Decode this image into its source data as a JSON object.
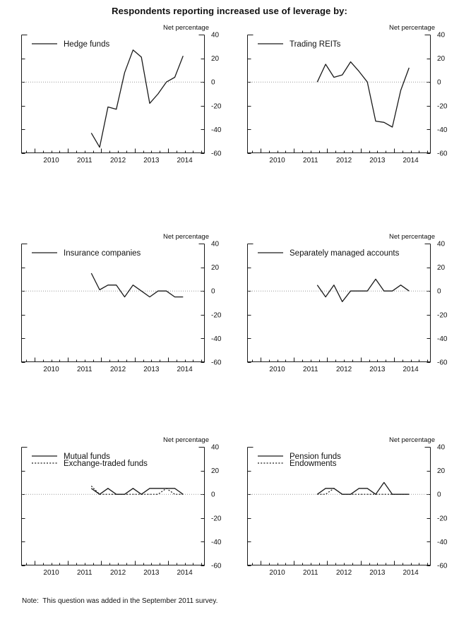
{
  "title": "Respondents reporting increased use of leverage by:",
  "note": "Note:  This question was added in the September 2011 survey.",
  "colors": {
    "line": "#1a1a1a",
    "zero_line": "#979797",
    "text": "#111111"
  },
  "chart_data": {
    "type": "line",
    "unit_label": "Net percentage",
    "ylim": [
      -60,
      40
    ],
    "y_ticks": [
      40,
      20,
      0,
      -20,
      -40,
      -60
    ],
    "xlim": [
      2009.6,
      2015.1
    ],
    "x_year_labels": [
      "2010",
      "2011",
      "2012",
      "2013",
      "2014"
    ],
    "grid": "zero-line-only",
    "legend_position": "top-left",
    "x_quarters": [
      "2011 Q3",
      "2011 Q4",
      "2012 Q1",
      "2012 Q2",
      "2012 Q3",
      "2012 Q4",
      "2013 Q1",
      "2013 Q2",
      "2013 Q3",
      "2013 Q4",
      "2014 Q1",
      "2014 Q2"
    ],
    "x_numeric": [
      2011.7,
      2011.95,
      2012.2,
      2012.45,
      2012.7,
      2012.95,
      2013.2,
      2013.45,
      2013.7,
      2013.95,
      2014.2,
      2014.45
    ],
    "panels": [
      {
        "name": "hedge-funds",
        "series": [
          {
            "label": "Hedge funds",
            "style": "solid",
            "values": [
              -43,
              -55,
              -21,
              -23,
              8,
              27,
              21,
              -18,
              -10,
              0,
              4,
              22
            ]
          }
        ]
      },
      {
        "name": "trading-reits",
        "series": [
          {
            "label": "Trading REITs",
            "style": "solid",
            "values": [
              0,
              15,
              4,
              6,
              17,
              9,
              0,
              -33,
              -34,
              -38,
              -7,
              12
            ]
          }
        ]
      },
      {
        "name": "insurance-companies",
        "series": [
          {
            "label": "Insurance companies",
            "style": "solid",
            "values": [
              15,
              1,
              5,
              5,
              -5,
              5,
              0,
              -5,
              0,
              0,
              -5,
              -5
            ]
          }
        ]
      },
      {
        "name": "separately-managed-accounts",
        "series": [
          {
            "label": "Separately managed accounts",
            "style": "solid",
            "values": [
              5,
              -5,
              5,
              -9,
              0,
              0,
              0,
              10,
              0,
              0,
              5,
              0
            ]
          }
        ]
      },
      {
        "name": "mutual-funds-etfs",
        "series": [
          {
            "label": "Mutual funds",
            "style": "solid",
            "values": [
              5,
              0,
              5,
              0,
              0,
              5,
              0,
              5,
              5,
              5,
              5,
              0
            ]
          },
          {
            "label": "Exchange-traded funds",
            "style": "dotted",
            "values": [
              7,
              0,
              0,
              0,
              0,
              0,
              0,
              0,
              0,
              5,
              0,
              0
            ]
          }
        ]
      },
      {
        "name": "pension-funds-endowments",
        "series": [
          {
            "label": "Pension funds",
            "style": "solid",
            "values": [
              0,
              5,
              5,
              0,
              0,
              5,
              5,
              0,
              10,
              0,
              0,
              0
            ]
          },
          {
            "label": "Endowments",
            "style": "dotted",
            "values": [
              0,
              0,
              5,
              0,
              0,
              0,
              0,
              0,
              0,
              0,
              0,
              0
            ]
          }
        ]
      }
    ]
  }
}
